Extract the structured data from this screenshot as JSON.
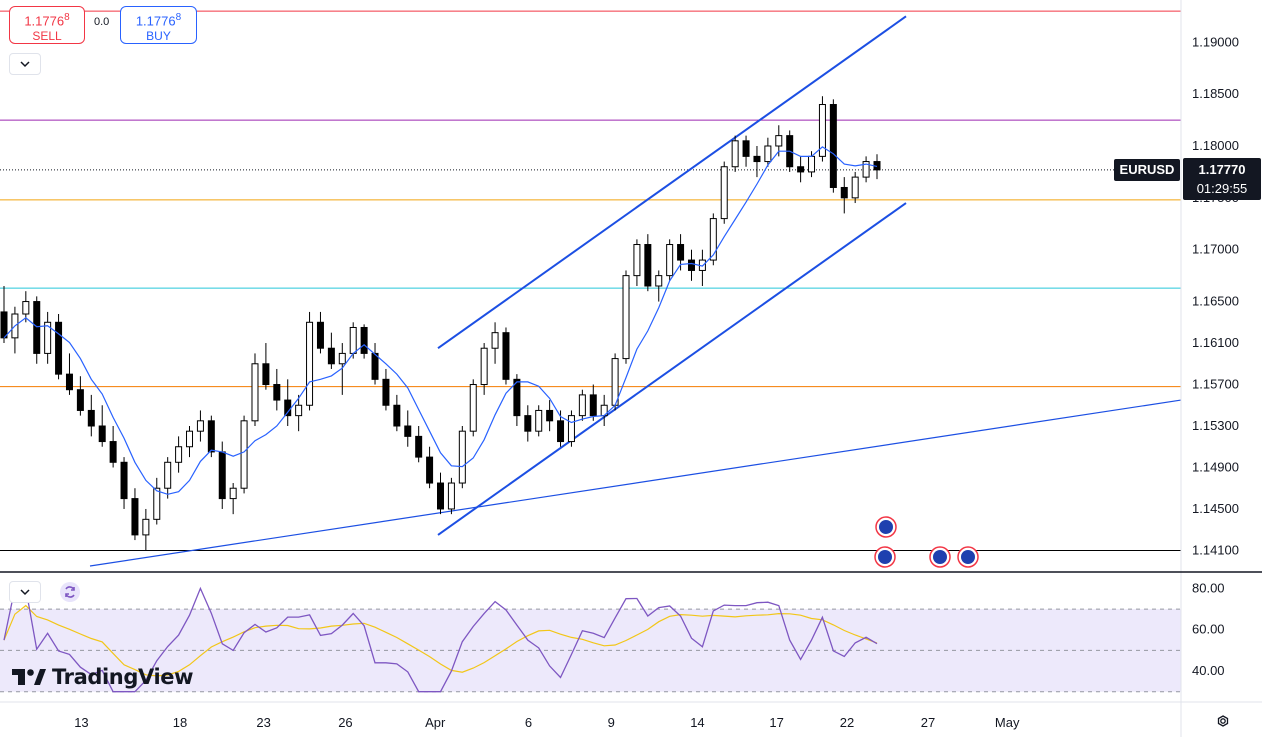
{
  "trade_panel": {
    "sell_price": "1.1776",
    "sell_price_sup": "8",
    "sell_label": "SELL",
    "spread": "0.0",
    "buy_price": "1.1776",
    "buy_price_sup": "8",
    "buy_label": "BUY"
  },
  "symbol": "EURUSD",
  "last_price": "1.17770",
  "countdown": "01:29:55",
  "logo_text": "TradingView",
  "colors": {
    "up": "#ffffff",
    "down": "#000000",
    "trendline": "#1c4fe3",
    "ma": "#2962ff",
    "rsi": "#7e57c2",
    "rsi_ma": "#f2c618",
    "rsi_band": "#ede9fb"
  },
  "chart_data": {
    "type": "candlestick",
    "price_axis": {
      "ticks": [
        "1.19000",
        "1.18500",
        "1.18000",
        "1.17500",
        "1.17000",
        "1.16500",
        "1.16100",
        "1.15700",
        "1.15300",
        "1.14900",
        "1.14500",
        "1.14100"
      ],
      "range": [
        1.1395,
        1.1935
      ]
    },
    "time_axis": {
      "ticks": [
        "13",
        "18",
        "23",
        "26",
        "Apr",
        "6",
        "9",
        "14",
        "17",
        "22",
        "27",
        "May"
      ]
    },
    "horizontal_levels": [
      {
        "price": 1.193,
        "color": "#f23645"
      },
      {
        "price": 1.1825,
        "color": "#9c27b0"
      },
      {
        "price": 1.1748,
        "color": "#f2a50f"
      },
      {
        "price": 1.1663,
        "color": "#26c6da"
      },
      {
        "price": 1.1568,
        "color": "#f57c00"
      },
      {
        "price": 1.141,
        "color": "#000000"
      }
    ],
    "channel_lines": [
      {
        "from": [
          0.0,
          1.1605
        ],
        "to": [
          0.0,
          1.1925
        ],
        "note": "upper"
      }
    ],
    "candles_approx": [
      [
        1.164,
        1.1665,
        1.161,
        1.1615
      ],
      [
        1.1615,
        1.1645,
        1.16,
        1.1638
      ],
      [
        1.1638,
        1.166,
        1.163,
        1.165
      ],
      [
        1.165,
        1.1655,
        1.159,
        1.16
      ],
      [
        1.16,
        1.164,
        1.159,
        1.163
      ],
      [
        1.163,
        1.1638,
        1.1575,
        1.158
      ],
      [
        1.158,
        1.16,
        1.156,
        1.1565
      ],
      [
        1.1565,
        1.1578,
        1.154,
        1.1545
      ],
      [
        1.1545,
        1.156,
        1.152,
        1.153
      ],
      [
        1.153,
        1.155,
        1.151,
        1.1515
      ],
      [
        1.1515,
        1.153,
        1.149,
        1.1495
      ],
      [
        1.1495,
        1.15,
        1.145,
        1.146
      ],
      [
        1.146,
        1.147,
        1.142,
        1.1425
      ],
      [
        1.1425,
        1.145,
        1.141,
        1.144
      ],
      [
        1.144,
        1.148,
        1.1435,
        1.147
      ],
      [
        1.147,
        1.15,
        1.146,
        1.1495
      ],
      [
        1.1495,
        1.152,
        1.1485,
        1.151
      ],
      [
        1.151,
        1.153,
        1.15,
        1.1525
      ],
      [
        1.1525,
        1.1545,
        1.1515,
        1.1535
      ],
      [
        1.1535,
        1.154,
        1.15,
        1.1505
      ],
      [
        1.1505,
        1.1515,
        1.145,
        1.146
      ],
      [
        1.146,
        1.1475,
        1.1445,
        1.147
      ],
      [
        1.147,
        1.154,
        1.1465,
        1.1535
      ],
      [
        1.1535,
        1.16,
        1.153,
        1.159
      ],
      [
        1.159,
        1.161,
        1.1565,
        1.157
      ],
      [
        1.157,
        1.1585,
        1.1545,
        1.1555
      ],
      [
        1.1555,
        1.1575,
        1.153,
        1.154
      ],
      [
        1.154,
        1.156,
        1.1525,
        1.155
      ],
      [
        1.155,
        1.164,
        1.1545,
        1.163
      ],
      [
        1.163,
        1.164,
        1.16,
        1.1605
      ],
      [
        1.1605,
        1.162,
        1.1585,
        1.159
      ],
      [
        1.159,
        1.161,
        1.156,
        1.16
      ],
      [
        1.16,
        1.163,
        1.1595,
        1.1625
      ],
      [
        1.1625,
        1.1628,
        1.1595,
        1.16
      ],
      [
        1.16,
        1.161,
        1.157,
        1.1575
      ],
      [
        1.1575,
        1.1585,
        1.1545,
        1.155
      ],
      [
        1.155,
        1.156,
        1.1525,
        1.153
      ],
      [
        1.153,
        1.1545,
        1.151,
        1.152
      ],
      [
        1.152,
        1.153,
        1.1495,
        1.15
      ],
      [
        1.15,
        1.151,
        1.147,
        1.1475
      ],
      [
        1.1475,
        1.1485,
        1.1445,
        1.145
      ],
      [
        1.145,
        1.148,
        1.1445,
        1.1475
      ],
      [
        1.1475,
        1.153,
        1.147,
        1.1525
      ],
      [
        1.1525,
        1.1575,
        1.152,
        1.157
      ],
      [
        1.157,
        1.161,
        1.156,
        1.1605
      ],
      [
        1.1605,
        1.163,
        1.159,
        1.162
      ],
      [
        1.162,
        1.1625,
        1.157,
        1.1575
      ],
      [
        1.1575,
        1.158,
        1.153,
        1.154
      ],
      [
        1.154,
        1.155,
        1.1515,
        1.1525
      ],
      [
        1.1525,
        1.155,
        1.152,
        1.1545
      ],
      [
        1.1545,
        1.1555,
        1.1525,
        1.1535
      ],
      [
        1.1535,
        1.1545,
        1.151,
        1.1515
      ],
      [
        1.1515,
        1.1545,
        1.151,
        1.154
      ],
      [
        1.154,
        1.1565,
        1.1535,
        1.156
      ],
      [
        1.156,
        1.157,
        1.1535,
        1.154
      ],
      [
        1.154,
        1.156,
        1.153,
        1.155
      ],
      [
        1.155,
        1.16,
        1.1545,
        1.1595
      ],
      [
        1.1595,
        1.168,
        1.159,
        1.1675
      ],
      [
        1.1675,
        1.171,
        1.1665,
        1.1705
      ],
      [
        1.1705,
        1.1715,
        1.166,
        1.1665
      ],
      [
        1.1665,
        1.168,
        1.165,
        1.1675
      ],
      [
        1.1675,
        1.171,
        1.167,
        1.1705
      ],
      [
        1.1705,
        1.1715,
        1.168,
        1.169
      ],
      [
        1.169,
        1.17,
        1.167,
        1.168
      ],
      [
        1.168,
        1.17,
        1.1665,
        1.169
      ],
      [
        1.169,
        1.1735,
        1.1685,
        1.173
      ],
      [
        1.173,
        1.1785,
        1.1725,
        1.178
      ],
      [
        1.178,
        1.181,
        1.1775,
        1.1805
      ],
      [
        1.1805,
        1.181,
        1.178,
        1.179
      ],
      [
        1.179,
        1.18,
        1.177,
        1.1785
      ],
      [
        1.1785,
        1.1808,
        1.178,
        1.18
      ],
      [
        1.18,
        1.182,
        1.179,
        1.181
      ],
      [
        1.181,
        1.1815,
        1.1775,
        1.178
      ],
      [
        1.178,
        1.179,
        1.1765,
        1.1775
      ],
      [
        1.1775,
        1.1795,
        1.177,
        1.179
      ],
      [
        1.179,
        1.1848,
        1.1785,
        1.184
      ],
      [
        1.184,
        1.1845,
        1.1755,
        1.176
      ],
      [
        1.176,
        1.177,
        1.1735,
        1.175
      ],
      [
        1.175,
        1.1775,
        1.1745,
        1.177
      ],
      [
        1.177,
        1.179,
        1.1765,
        1.1785
      ],
      [
        1.1785,
        1.1792,
        1.1768,
        1.1777
      ]
    ],
    "rsi": {
      "ticks": [
        "80.00",
        "60.00",
        "40.00"
      ],
      "range": [
        26,
        86
      ],
      "band": [
        30,
        70
      ]
    }
  }
}
